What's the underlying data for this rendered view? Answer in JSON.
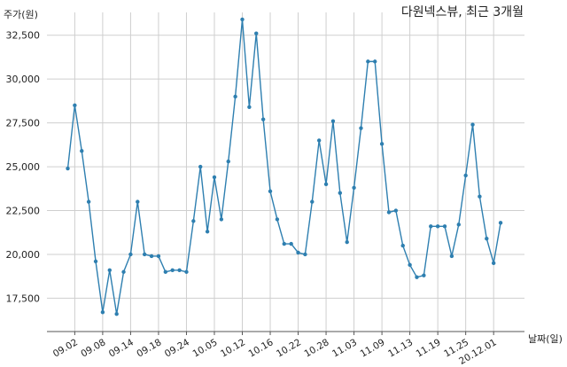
{
  "chart_data": {
    "type": "line",
    "title": "다원넥스뷰, 최근 3개월",
    "ylabel": "주가(원)",
    "xlabel": "날짜(일)",
    "ylim": [
      15600,
      33800
    ],
    "grid": true,
    "yticks": [
      17500,
      20000,
      22500,
      25000,
      27500,
      30000,
      32500
    ],
    "ytick_labels": [
      "17,500",
      "20,000",
      "22,500",
      "25,000",
      "27,500",
      "30,000",
      "32,500"
    ],
    "xtick_labels": [
      "09.02",
      "09.08",
      "09.14",
      "09.18",
      "09.24",
      "10.05",
      "10.12",
      "10.16",
      "10.22",
      "10.28",
      "11.03",
      "11.09",
      "11.13",
      "11.19",
      "11.25",
      "20.12.01"
    ],
    "xtick_index": [
      1,
      5,
      9,
      13,
      17,
      21,
      25,
      29,
      33,
      37,
      41,
      45,
      49,
      53,
      57,
      61
    ],
    "series": [
      {
        "color": "#2e7fb0",
        "values": [
          24900,
          28500,
          25900,
          23000,
          19600,
          16700,
          19100,
          16600,
          19000,
          20000,
          23000,
          20000,
          19900,
          19900,
          19000,
          19100,
          19100,
          19000,
          21900,
          25000,
          21300,
          24400,
          22000,
          25300,
          29000,
          33400,
          28400,
          32600,
          27700,
          23600,
          22000,
          20600,
          20600,
          20100,
          20000,
          23000,
          26500,
          24000,
          27600,
          23500,
          20700,
          23800,
          27200,
          31000,
          31000,
          26300,
          22400,
          22500,
          20500,
          19400,
          18700,
          18800,
          21600,
          21600,
          21600,
          19900,
          21700,
          24500,
          27400,
          23300,
          20900,
          19500,
          21800
        ]
      }
    ]
  }
}
